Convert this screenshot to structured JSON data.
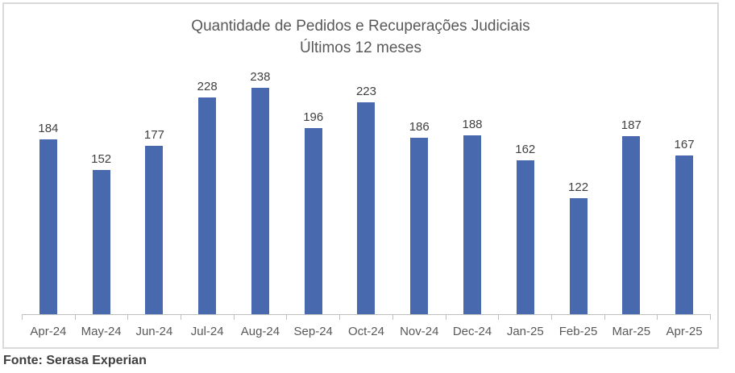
{
  "chart_data": {
    "type": "bar",
    "title": "Quantidade de Pedidos e Recuperações Judiciais",
    "subtitle": "Últimos 12 meses",
    "categories": [
      "Apr-24",
      "May-24",
      "Jun-24",
      "Jul-24",
      "Aug-24",
      "Sep-24",
      "Oct-24",
      "Nov-24",
      "Dec-24",
      "Jan-25",
      "Feb-25",
      "Mar-25",
      "Apr-25"
    ],
    "values": [
      184,
      152,
      177,
      228,
      238,
      196,
      223,
      186,
      188,
      162,
      122,
      187,
      167
    ],
    "xlabel": "",
    "ylabel": "",
    "ylim": [
      0,
      265
    ],
    "grid": false,
    "legend": "none",
    "data_labels": true,
    "bar_color": "#4869AD"
  },
  "footer": {
    "source": "Fonte: Serasa Experian"
  },
  "colors": {
    "bar": "#4869AD",
    "title_text": "#595959",
    "value_label_text": "#404040",
    "axis_text": "#595959",
    "axis_line": "#BFBFBF",
    "frame_border": "#D9D9D9"
  }
}
